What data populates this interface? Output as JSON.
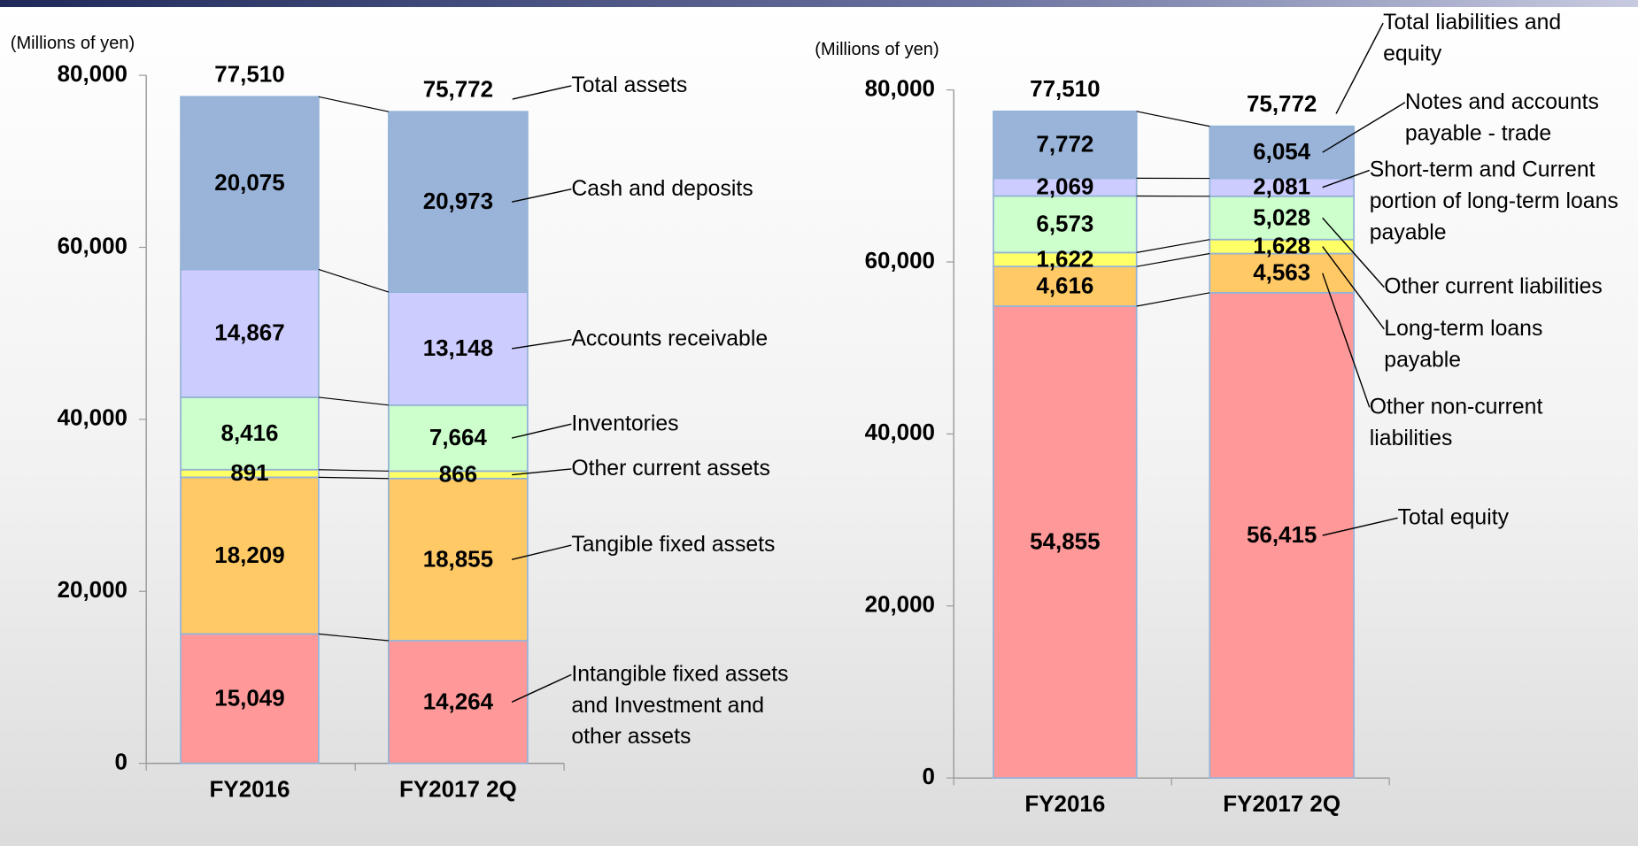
{
  "chart_data": [
    {
      "type": "bar",
      "stacked": true,
      "y_label": "(Millions of yen)",
      "categories": [
        "FY2016",
        "FY2017 2Q"
      ],
      "ylim": [
        0,
        80000
      ],
      "yticks": [
        0,
        {
          "value": 20000,
          "label": "20,000"
        },
        {
          "value": 40000,
          "label": "40,000"
        },
        {
          "value": 60000,
          "label": "60,000"
        },
        {
          "value": 80000,
          "label": "80,000"
        }
      ],
      "series": [
        {
          "name": "Intangible fixed assets and Investment and other assets",
          "color": "#ff9999",
          "values": [
            15049,
            14264
          ],
          "value_labels": [
            "15,049",
            "14,264"
          ]
        },
        {
          "name": "Tangible fixed assets",
          "color": "#ffc966",
          "values": [
            18209,
            18855
          ],
          "value_labels": [
            "18,209",
            "18,855"
          ]
        },
        {
          "name": "Other current assets",
          "color": "#ffff66",
          "values": [
            891,
            866
          ],
          "value_labels": [
            "891",
            "866"
          ]
        },
        {
          "name": "Inventories",
          "color": "#ccffcc",
          "values": [
            8416,
            7664
          ],
          "value_labels": [
            "8,416",
            "7,664"
          ]
        },
        {
          "name": "Accounts receivable",
          "color": "#ccccff",
          "values": [
            14867,
            13148
          ],
          "value_labels": [
            "14,867",
            "13,148"
          ]
        },
        {
          "name": "Cash and deposits",
          "color": "#99b3d9",
          "values": [
            20075,
            20973
          ],
          "value_labels": [
            "20,075",
            "20,973"
          ]
        }
      ],
      "totals": {
        "name": "Total assets",
        "values": [
          77510,
          75772
        ],
        "value_labels": [
          "77,510",
          "75,772"
        ]
      }
    },
    {
      "type": "bar",
      "stacked": true,
      "y_label": "(Millions of yen)",
      "categories": [
        "FY2016",
        "FY2017 2Q"
      ],
      "ylim": [
        0,
        80000
      ],
      "yticks": [
        0,
        {
          "value": 20000,
          "label": "20,000"
        },
        {
          "value": 40000,
          "label": "40,000"
        },
        {
          "value": 60000,
          "label": "60,000"
        },
        {
          "value": 80000,
          "label": "80,000"
        }
      ],
      "series": [
        {
          "name": "Total equity",
          "color": "#ff9999",
          "values": [
            54855,
            56415
          ],
          "value_labels": [
            "54,855",
            "56,415"
          ]
        },
        {
          "name": "Other non-current liabilities",
          "color": "#ffc966",
          "values": [
            4616,
            4563
          ],
          "value_labels": [
            "4,616",
            "4,563"
          ]
        },
        {
          "name": "Long-term loans payable",
          "color": "#ffff66",
          "values": [
            1622,
            1628
          ],
          "value_labels": [
            "1,622",
            "1,628"
          ]
        },
        {
          "name": "Other current liabilities",
          "color": "#ccffcc",
          "values": [
            6573,
            5028
          ],
          "value_labels": [
            "6,573",
            "5,028"
          ]
        },
        {
          "name": "Short-term and Current portion of long-term loans payable",
          "color": "#ccccff",
          "values": [
            2069,
            2081
          ],
          "value_labels": [
            "2,069",
            "2,081"
          ]
        },
        {
          "name": "Notes and accounts payable - trade",
          "color": "#99b3d9",
          "values": [
            7772,
            6054
          ],
          "value_labels": [
            "7,772",
            "6,054"
          ]
        }
      ],
      "totals": {
        "name": "Total liabilities and equity",
        "values": [
          77510,
          75772
        ],
        "value_labels": [
          "77,510",
          "75,772"
        ]
      }
    }
  ]
}
